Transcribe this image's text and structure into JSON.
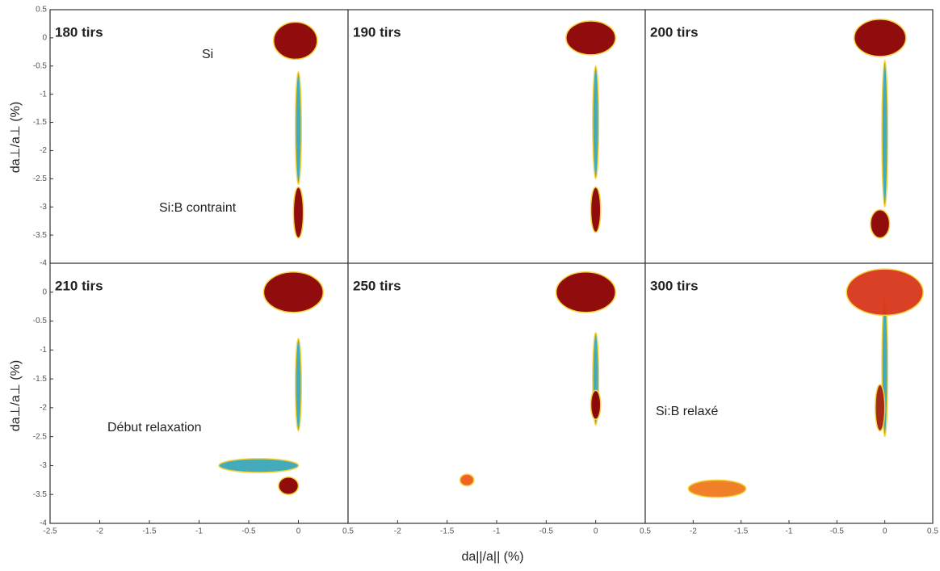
{
  "chart_data": [
    {
      "type": "contour",
      "title": "180 tirs",
      "xlim": [
        -2.5,
        0.5
      ],
      "ylim": [
        -4,
        0.5
      ],
      "yticks": [
        0.5,
        0,
        -0.5,
        -1,
        -1.5,
        -2,
        -2.5,
        -3,
        -3.5,
        -4
      ],
      "annotations": [
        "Si",
        "Si:B contraint"
      ],
      "peaks": [
        {
          "x": 0,
          "y": -1.6,
          "rx": 0.03,
          "ry": 1.0,
          "color": "#3aa6b9"
        },
        {
          "x": -0.03,
          "y": -0.05,
          "rx": 0.22,
          "ry": 0.33,
          "color": "#8b0000"
        },
        {
          "x": 0,
          "y": -3.1,
          "rx": 0.05,
          "ry": 0.45,
          "color": "#8b0000"
        }
      ]
    },
    {
      "type": "contour",
      "title": "190 tirs",
      "xlim": [
        -2.5,
        0.5
      ],
      "ylim": [
        -4,
        0.5
      ],
      "peaks": [
        {
          "x": 0,
          "y": -1.5,
          "rx": 0.03,
          "ry": 1.0,
          "color": "#3aa6b9"
        },
        {
          "x": -0.05,
          "y": 0,
          "rx": 0.25,
          "ry": 0.3,
          "color": "#8b0000"
        },
        {
          "x": 0,
          "y": -3.05,
          "rx": 0.05,
          "ry": 0.4,
          "color": "#8b0000"
        }
      ]
    },
    {
      "type": "contour",
      "title": "200 tirs",
      "xlim": [
        -2.5,
        0.5
      ],
      "ylim": [
        -4,
        0.5
      ],
      "peaks": [
        {
          "x": 0,
          "y": -1.7,
          "rx": 0.03,
          "ry": 1.3,
          "color": "#3aa6b9"
        },
        {
          "x": -0.05,
          "y": 0,
          "rx": 0.27,
          "ry": 0.33,
          "color": "#8b0000"
        },
        {
          "x": -0.05,
          "y": -3.3,
          "rx": 0.1,
          "ry": 0.25,
          "color": "#8b0000"
        }
      ]
    },
    {
      "type": "contour",
      "title": "210 tirs",
      "xlim": [
        -2.5,
        0.5
      ],
      "ylim": [
        -4,
        0.5
      ],
      "xticks": [
        -2.5,
        -2,
        -1.5,
        -1,
        -0.5,
        0,
        0.5
      ],
      "yticks": [
        0,
        -0.5,
        -1,
        -1.5,
        -2,
        -2.5,
        -3,
        -3.5,
        -4
      ],
      "annotations": [
        "Début relaxation"
      ],
      "peaks": [
        {
          "x": 0,
          "y": -1.6,
          "rx": 0.03,
          "ry": 0.8,
          "color": "#3aa6b9"
        },
        {
          "x": -0.4,
          "y": -3.0,
          "rx": 0.4,
          "ry": 0.12,
          "color": "#3aa6b9"
        },
        {
          "x": -0.05,
          "y": 0,
          "rx": 0.3,
          "ry": 0.35,
          "color": "#8b0000"
        },
        {
          "x": -0.1,
          "y": -3.35,
          "rx": 0.1,
          "ry": 0.15,
          "color": "#8b0000"
        }
      ]
    },
    {
      "type": "contour",
      "title": "250 tirs",
      "xlim": [
        -2.5,
        0.5
      ],
      "ylim": [
        -4,
        0.5
      ],
      "xticks": [
        -2,
        -1.5,
        -1,
        -0.5,
        0,
        0.5
      ],
      "peaks": [
        {
          "x": 0,
          "y": -1.5,
          "rx": 0.03,
          "ry": 0.8,
          "color": "#3aa6b9"
        },
        {
          "x": -0.1,
          "y": 0,
          "rx": 0.3,
          "ry": 0.35,
          "color": "#8b0000"
        },
        {
          "x": 0,
          "y": -1.95,
          "rx": 0.05,
          "ry": 0.25,
          "color": "#8b0000"
        },
        {
          "x": -1.3,
          "y": -3.25,
          "rx": 0.07,
          "ry": 0.1,
          "color": "#f05a1e"
        }
      ]
    },
    {
      "type": "contour",
      "title": "300 tirs",
      "xlim": [
        -2.5,
        0.5
      ],
      "ylim": [
        -4,
        0.5
      ],
      "xticks": [
        -2,
        -1.5,
        -1,
        -0.5,
        0,
        0.5
      ],
      "annotations": [
        "Si:B relaxé"
      ],
      "peaks": [
        {
          "x": 0,
          "y": -1.3,
          "rx": 0.03,
          "ry": 1.2,
          "color": "#3aa6b9"
        },
        {
          "x": 0,
          "y": 0,
          "rx": 0.4,
          "ry": 0.4,
          "color": "#d8361a"
        },
        {
          "x": -0.05,
          "y": -2.0,
          "rx": 0.05,
          "ry": 0.4,
          "color": "#a0200e"
        },
        {
          "x": -1.75,
          "y": -3.4,
          "rx": 0.3,
          "ry": 0.15,
          "color": "#f07a1e"
        }
      ]
    }
  ],
  "y_label": "da⊥/a⊥ (%)",
  "x_label": "da||/a|| (%)"
}
